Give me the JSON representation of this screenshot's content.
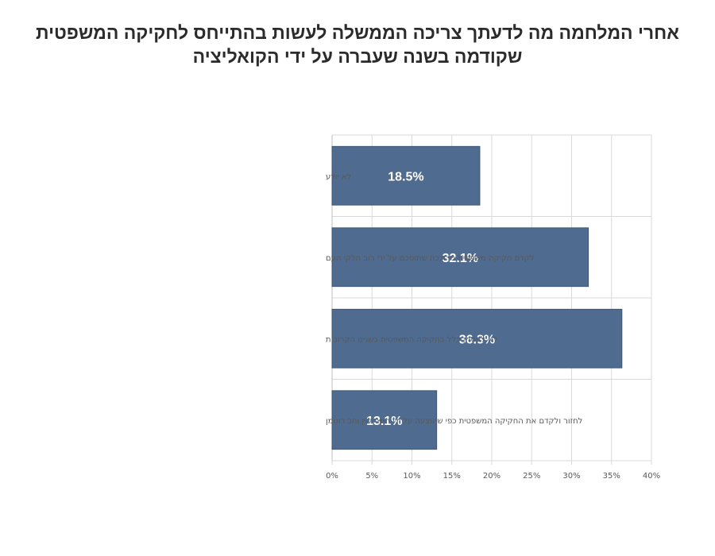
{
  "title": {
    "line1": "אחרי המלחמה מה לדעתך צריכה הממשלה לעשות בהתייחס לחקיקה המשפטית",
    "line2": "שקודמה בשנה שעברה על ידי הקואליציה"
  },
  "colors": {
    "bar": "#4f6b8f",
    "bar_edge": "#3e5674",
    "grid": "#d9d9d9"
  },
  "chart_data": {
    "type": "bar",
    "orientation": "horizontal",
    "categories": [
      "לא יודע",
      "לקדם חקיקה משפטית מרוככת שתוסכם על ידי רוב חלקי העם",
      "לא לעסוק כלל בחקיקה המשפטית בשנים הקרובות",
      "לחזור ולקדם את החקיקה המשפטית כפי שהוצעה על ידי השר לוין וחכ רוטמן"
    ],
    "values": [
      18.5,
      32.1,
      36.3,
      13.1
    ],
    "value_labels": [
      "18.5%",
      "32.1%",
      "36.3%",
      "13.1%"
    ],
    "xlim": [
      0,
      40
    ],
    "x_ticks": [
      "0%",
      "5%",
      "10%",
      "15%",
      "20%",
      "25%",
      "30%",
      "35%",
      "40%"
    ],
    "grid": true,
    "legend": "none"
  }
}
